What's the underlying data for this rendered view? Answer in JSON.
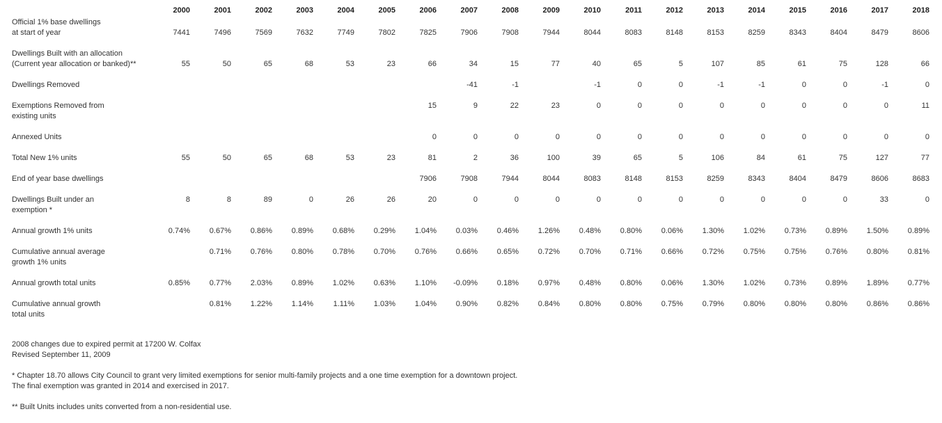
{
  "table": {
    "years": [
      "2000",
      "2001",
      "2002",
      "2003",
      "2004",
      "2005",
      "2006",
      "2007",
      "2008",
      "2009",
      "2010",
      "2011",
      "2012",
      "2013",
      "2014",
      "2015",
      "2016",
      "2017",
      "2018"
    ],
    "rows": [
      {
        "label_lines": [
          "Official 1% base dwellings",
          "at start of year"
        ],
        "valign": "bottom",
        "values": [
          "7441",
          "7496",
          "7569",
          "7632",
          "7749",
          "7802",
          "7825",
          "7906",
          "7908",
          "7944",
          "8044",
          "8083",
          "8148",
          "8153",
          "8259",
          "8343",
          "8404",
          "8479",
          "8606"
        ]
      },
      {
        "label_lines": [
          "Dwellings Built with an allocation",
          "(Current year allocation or banked)**"
        ],
        "valign": "bottom",
        "values": [
          "55",
          "50",
          "65",
          "68",
          "53",
          "23",
          "66",
          "34",
          "15",
          "77",
          "40",
          "65",
          "5",
          "107",
          "85",
          "61",
          "75",
          "128",
          "66"
        ]
      },
      {
        "label_lines": [
          "Dwellings Removed"
        ],
        "valign": "top",
        "values": [
          "",
          "",
          "",
          "",
          "",
          "",
          "",
          "-41",
          "-1",
          "",
          "-1",
          "0",
          "0",
          "-1",
          "-1",
          "0",
          "0",
          "-1",
          "0"
        ]
      },
      {
        "label_lines": [
          "Exemptions Removed from",
          "existing units"
        ],
        "valign": "top",
        "values": [
          "",
          "",
          "",
          "",
          "",
          "",
          "15",
          "9",
          "22",
          "23",
          "0",
          "0",
          "0",
          "0",
          "0",
          "0",
          "0",
          "0",
          "11"
        ]
      },
      {
        "label_lines": [
          "Annexed Units"
        ],
        "valign": "top",
        "values": [
          "",
          "",
          "",
          "",
          "",
          "",
          "0",
          "0",
          "0",
          "0",
          "0",
          "0",
          "0",
          "0",
          "0",
          "0",
          "0",
          "0",
          "0"
        ]
      },
      {
        "label_lines": [
          "Total New 1% units"
        ],
        "valign": "top",
        "values": [
          "55",
          "50",
          "65",
          "68",
          "53",
          "23",
          "81",
          "2",
          "36",
          "100",
          "39",
          "65",
          "5",
          "106",
          "84",
          "61",
          "75",
          "127",
          "77"
        ]
      },
      {
        "label_lines": [
          "End of year base dwellings"
        ],
        "valign": "top",
        "values": [
          "",
          "",
          "",
          "",
          "",
          "",
          "7906",
          "7908",
          "7944",
          "8044",
          "8083",
          "8148",
          "8153",
          "8259",
          "8343",
          "8404",
          "8479",
          "8606",
          "8683"
        ]
      },
      {
        "label_lines": [
          "Dwellings Built under an",
          "exemption *"
        ],
        "valign": "top",
        "values": [
          "8",
          "8",
          "89",
          "0",
          "26",
          "26",
          "20",
          "0",
          "0",
          "0",
          "0",
          "0",
          "0",
          "0",
          "0",
          "0",
          "0",
          "33",
          "0"
        ]
      },
      {
        "label_lines": [
          "Annual growth 1% units"
        ],
        "valign": "top",
        "values": [
          "0.74%",
          "0.67%",
          "0.86%",
          "0.89%",
          "0.68%",
          "0.29%",
          "1.04%",
          "0.03%",
          "0.46%",
          "1.26%",
          "0.48%",
          "0.80%",
          "0.06%",
          "1.30%",
          "1.02%",
          "0.73%",
          "0.89%",
          "1.50%",
          "0.89%"
        ]
      },
      {
        "label_lines": [
          "Cumulative annual average",
          "growth 1% units"
        ],
        "valign": "top",
        "values": [
          "",
          "0.71%",
          "0.76%",
          "0.80%",
          "0.78%",
          "0.70%",
          "0.76%",
          "0.66%",
          "0.65%",
          "0.72%",
          "0.70%",
          "0.71%",
          "0.66%",
          "0.72%",
          "0.75%",
          "0.75%",
          "0.76%",
          "0.80%",
          "0.81%"
        ]
      },
      {
        "label_lines": [
          "Annual growth total units"
        ],
        "valign": "top",
        "values": [
          "0.85%",
          "0.77%",
          "2.03%",
          "0.89%",
          "1.02%",
          "0.63%",
          "1.10%",
          "-0.09%",
          "0.18%",
          "0.97%",
          "0.48%",
          "0.80%",
          "0.06%",
          "1.30%",
          "1.02%",
          "0.73%",
          "0.89%",
          "1.89%",
          "0.77%"
        ]
      },
      {
        "label_lines": [
          "Cumulative annual growth",
          "total units"
        ],
        "valign": "top",
        "values": [
          "",
          "0.81%",
          "1.22%",
          "1.14%",
          "1.11%",
          "1.03%",
          "1.04%",
          "0.90%",
          "0.82%",
          "0.84%",
          "0.80%",
          "0.80%",
          "0.75%",
          "0.79%",
          "0.80%",
          "0.80%",
          "0.80%",
          "0.86%",
          "0.86%"
        ]
      }
    ]
  },
  "footnotes": [
    {
      "lines": [
        "2008 changes due to expired permit at 17200 W. Colfax",
        "Revised September 11, 2009"
      ]
    },
    {
      "lines": [
        "* Chapter 18.70 allows City Council to grant very limited exemptions for senior multi-family projects and a one time exemption for a downtown project.",
        "The final exemption was granted in 2014 and exercised in 2017."
      ]
    },
    {
      "lines": [
        "** Built Units includes units converted from a non-residential use."
      ]
    }
  ]
}
